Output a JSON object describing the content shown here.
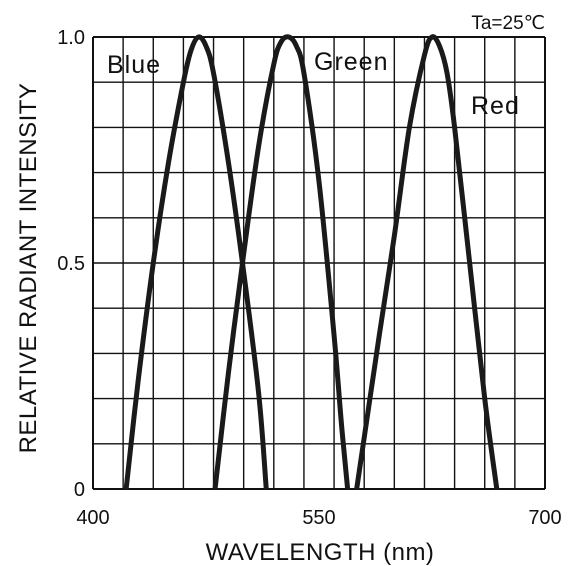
{
  "chart_data": {
    "type": "line",
    "xlabel": "WAVELENGTH (nm)",
    "ylabel": "RELATIVE RADIANT INTENSITY",
    "condition": "Ta=25℃",
    "xlim": [
      400,
      700
    ],
    "ylim": [
      0,
      1.0
    ],
    "x_ticks": [
      {
        "value": 400,
        "label": "400"
      },
      {
        "value": 550,
        "label": "550"
      },
      {
        "value": 700,
        "label": "700"
      }
    ],
    "y_ticks": [
      {
        "value": 0,
        "label": "0"
      },
      {
        "value": 0.5,
        "label": "0.5"
      },
      {
        "value": 1.0,
        "label": "1.0"
      }
    ],
    "grid": true,
    "grid_x_step": 20,
    "grid_y_step": 0.1,
    "series": [
      {
        "name": "Blue",
        "color": "#1a1a1a",
        "x": [
          422,
          430,
          440,
          450,
          460,
          465,
          470,
          475,
          480,
          490,
          500,
          510,
          515
        ],
        "y": [
          0.0,
          0.24,
          0.5,
          0.72,
          0.9,
          0.97,
          1.0,
          0.98,
          0.92,
          0.72,
          0.48,
          0.21,
          0.0
        ]
      },
      {
        "name": "Green",
        "color": "#1a1a1a",
        "x": [
          481,
          490,
          500,
          510,
          520,
          525,
          530,
          535,
          540,
          550,
          560,
          565,
          569
        ],
        "y": [
          0.0,
          0.26,
          0.52,
          0.76,
          0.94,
          0.99,
          1.0,
          0.98,
          0.92,
          0.68,
          0.34,
          0.14,
          0.0
        ]
      },
      {
        "name": "Red",
        "color": "#1a1a1a",
        "x": [
          575,
          590,
          600,
          610,
          620,
          625,
          630,
          635,
          640,
          650,
          660,
          668
        ],
        "y": [
          0.0,
          0.34,
          0.56,
          0.8,
          0.96,
          1.0,
          0.98,
          0.92,
          0.8,
          0.5,
          0.2,
          0.0
        ]
      }
    ]
  }
}
